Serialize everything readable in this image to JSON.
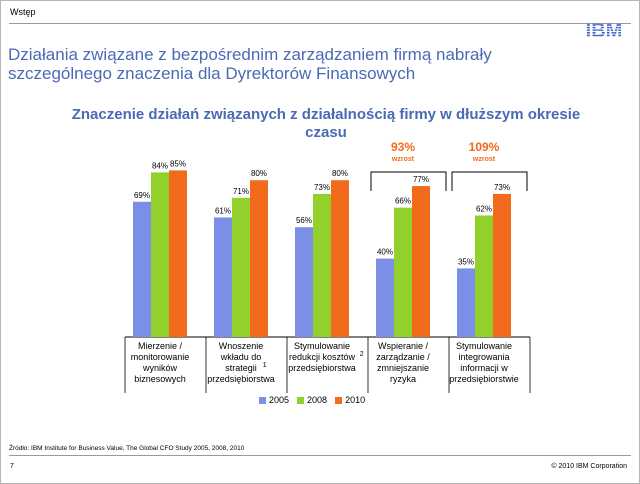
{
  "header": {
    "section": "Wstęp",
    "logo_text": "IBM",
    "headline_line1": "Działania związane z bezpośrednim zarządzaniem firmą nabrały",
    "headline_line2": "szczególnego znaczenia dla Dyrektorów Finansowych"
  },
  "chart_data": {
    "type": "bar",
    "title": "Znaczenie działań związanych z działalnością firmy w dłuższym okresie czasu",
    "title_line1": "Znaczenie działań związanych z działalnością firmy w dłuższym okresie",
    "title_line2": "czasu",
    "categories": [
      [
        "Mierzenie /",
        "monitorowanie",
        "wyników",
        "biznesowych"
      ],
      [
        "Wnoszenie",
        "wkładu do",
        "strategii",
        "przedsiębiorstwa"
      ],
      [
        "Stymulowanie",
        "redukcji kosztów",
        "przedsiębiorstwa"
      ],
      [
        "Wspieranie /",
        "zarządzanie /",
        "zmniejszanie",
        "ryzyka"
      ],
      [
        "Stymulowanie",
        "integrowania",
        "informacji w",
        "przedsiębiorstwie"
      ]
    ],
    "category_superscripts": [
      "",
      "1",
      "2",
      "",
      ""
    ],
    "series": [
      {
        "name": "2005",
        "color": "#7b8fe6",
        "values": [
          69,
          61,
          56,
          40,
          35
        ]
      },
      {
        "name": "2008",
        "color": "#92d12c",
        "values": [
          84,
          71,
          73,
          66,
          62
        ]
      },
      {
        "name": "2010",
        "color": "#f26a1b",
        "values": [
          85,
          80,
          80,
          77,
          73
        ]
      }
    ],
    "value_suffix": "%",
    "ylim": [
      0,
      100
    ],
    "grid": false,
    "legend_position": "bottom",
    "annotations": [
      {
        "category_index": 3,
        "value": "93%",
        "label": "wzrost",
        "color": "#f26a1b"
      },
      {
        "category_index": 4,
        "value": "109%",
        "label": "wzrost",
        "color": "#f26a1b"
      }
    ]
  },
  "footer": {
    "source": "Źródło: IBM Institute for Business Value, The Global CFO Study 2005, 2008, 2010",
    "page_number": "7",
    "copyright": "© 2010 IBM Corporation"
  }
}
